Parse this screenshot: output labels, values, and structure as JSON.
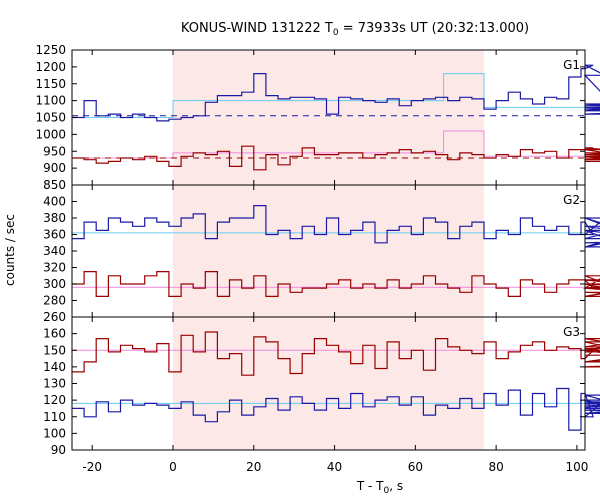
{
  "chart_data": {
    "type": "line",
    "title_main": "KONUS-WIND 131222 T",
    "title_sub": "0",
    "title_rest": " = 73933s UT (20:32:13.000)",
    "xlabel_main": "T - T",
    "xlabel_sub": "0",
    "xlabel_rest": ", s",
    "ylabel": "counts / sec",
    "xlim": [
      -25,
      102
    ],
    "x_ticks": [
      -20,
      0,
      20,
      40,
      60,
      80,
      100
    ],
    "x_tick_labels": [
      "-20",
      "0",
      "20",
      "40",
      "60",
      "80",
      "100"
    ],
    "highlight_interval": [
      0,
      77
    ],
    "highlight_color": "#fde8e8",
    "colors": {
      "blue": "#1a1aa6",
      "red": "#990000",
      "cyan": "#66ccee",
      "pink": "#ee88dd"
    },
    "panels": [
      {
        "label": "G1",
        "ylim": [
          850,
          1250
        ],
        "y_ticks": [
          850,
          900,
          950,
          1000,
          1050,
          1100,
          1150,
          1200,
          1250
        ],
        "y_tick_labels": [
          "850",
          "900",
          "950",
          "1000",
          "1050",
          "1100",
          "1150",
          "1200",
          "1250"
        ],
        "series": [
          {
            "color": "blue",
            "x0": -25,
            "step": 3,
            "values": [
              1050,
              1100,
              1055,
              1060,
              1050,
              1060,
              1050,
              1040,
              1045,
              1050,
              1055,
              1095,
              1115,
              1115,
              1125,
              1180,
              1115,
              1105,
              1110,
              1110,
              1105,
              1060,
              1110,
              1105,
              1100,
              1095,
              1105,
              1085,
              1100,
              1105,
              1110,
              1100,
              1110,
              1105,
              1075,
              1100,
              1125,
              1105,
              1090,
              1110,
              1105,
              1170,
              1195,
              1205,
              1175,
              1075,
              1080,
              1070,
              1090,
              1070,
              1085,
              1080,
              1060,
              1075
            ]
          },
          {
            "color": "red",
            "x0": -25,
            "step": 3,
            "values": [
              930,
              925,
              915,
              920,
              930,
              925,
              935,
              920,
              905,
              935,
              945,
              940,
              950,
              905,
              965,
              895,
              940,
              910,
              935,
              960,
              940,
              940,
              945,
              945,
              930,
              940,
              945,
              955,
              945,
              950,
              940,
              925,
              945,
              940,
              930,
              940,
              935,
              955,
              945,
              950,
              930,
              955,
              955,
              960,
              955,
              940,
              935,
              925,
              935,
              940,
              945,
              930,
              935,
              920
            ]
          }
        ],
        "fits": [
          {
            "color": "cyan",
            "style": "solid",
            "points": [
              [
                -25,
                1050
              ],
              [
                0,
                1050
              ],
              [
                0,
                1100
              ],
              [
                67,
                1100
              ],
              [
                67,
                1180
              ],
              [
                77,
                1180
              ],
              [
                77,
                1080
              ],
              [
                102,
                1080
              ]
            ]
          },
          {
            "color": "blue",
            "style": "dashed",
            "points": [
              [
                -25,
                1055
              ],
              [
                102,
                1055
              ]
            ]
          },
          {
            "color": "pink",
            "style": "solid",
            "points": [
              [
                -25,
                930
              ],
              [
                0,
                930
              ],
              [
                0,
                945
              ],
              [
                67,
                945
              ],
              [
                67,
                1010
              ],
              [
                77,
                1010
              ],
              [
                77,
                935
              ],
              [
                102,
                935
              ]
            ]
          },
          {
            "color": "red",
            "style": "dashed",
            "points": [
              [
                -25,
                930
              ],
              [
                102,
                930
              ]
            ]
          }
        ]
      },
      {
        "label": "G2",
        "ylim": [
          260,
          420
        ],
        "y_ticks": [
          260,
          280,
          300,
          320,
          340,
          360,
          380,
          400
        ],
        "y_tick_labels": [
          "260",
          "280",
          "300",
          "320",
          "340",
          "360",
          "380",
          "400"
        ],
        "series": [
          {
            "color": "blue",
            "x0": -25,
            "step": 3,
            "values": [
              355,
              375,
              365,
              380,
              375,
              370,
              380,
              375,
              370,
              380,
              385,
              355,
              375,
              380,
              380,
              395,
              360,
              365,
              355,
              370,
              360,
              380,
              360,
              365,
              375,
              350,
              365,
              370,
              360,
              380,
              375,
              355,
              370,
              375,
              355,
              365,
              360,
              380,
              370,
              365,
              370,
              360,
              375,
              360,
              380,
              365,
              345,
              365,
              355,
              380,
              345,
              370,
              350,
              355
            ]
          },
          {
            "color": "red",
            "x0": -25,
            "step": 3,
            "values": [
              300,
              315,
              285,
              310,
              300,
              300,
              310,
              315,
              285,
              300,
              295,
              315,
              285,
              305,
              295,
              310,
              285,
              300,
              290,
              295,
              295,
              300,
              305,
              295,
              300,
              295,
              305,
              295,
              300,
              310,
              300,
              295,
              290,
              310,
              300,
              295,
              285,
              305,
              300,
              290,
              300,
              305,
              305,
              295,
              310,
              295,
              300,
              285,
              300,
              295,
              285,
              305,
              290,
              285
            ]
          }
        ],
        "fits": [
          {
            "color": "cyan",
            "style": "solid",
            "points": [
              [
                -25,
                362
              ],
              [
                102,
                362
              ]
            ]
          },
          {
            "color": "pink",
            "style": "solid",
            "points": [
              [
                -25,
                296
              ],
              [
                102,
                296
              ]
            ]
          }
        ]
      },
      {
        "label": "G3",
        "ylim": [
          90,
          170
        ],
        "y_ticks": [
          90,
          100,
          110,
          120,
          130,
          140,
          150,
          160
        ],
        "y_tick_labels": [
          "90",
          "100",
          "110",
          "120",
          "130",
          "140",
          "150",
          "160"
        ],
        "series": [
          {
            "color": "red",
            "x0": -25,
            "step": 3,
            "values": [
              137,
              143,
              157,
              149,
              153,
              151,
              149,
              154,
              137,
              159,
              149,
              161,
              145,
              148,
              135,
              158,
              155,
              145,
              136,
              148,
              157,
              153,
              149,
              142,
              153,
              139,
              155,
              145,
              150,
              138,
              157,
              152,
              150,
              148,
              155,
              145,
              149,
              153,
              155,
              150,
              152,
              151,
              145,
              150,
              152,
              155,
              149,
              157,
              150,
              143,
              151,
              140,
              143,
              147
            ]
          },
          {
            "color": "blue",
            "x0": -25,
            "step": 3,
            "values": [
              115,
              110,
              119,
              113,
              120,
              117,
              118,
              117,
              115,
              119,
              111,
              107,
              113,
              120,
              111,
              116,
              121,
              114,
              122,
              118,
              114,
              121,
              115,
              124,
              116,
              120,
              122,
              117,
              122,
              111,
              117,
              115,
              121,
              115,
              124,
              117,
              126,
              111,
              124,
              116,
              127,
              102,
              124,
              110,
              120,
              115,
              123,
              114,
              112,
              116,
              119,
              117,
              118,
              120
            ]
          }
        ],
        "fits": [
          {
            "color": "pink",
            "style": "solid",
            "points": [
              [
                -25,
                150
              ],
              [
                102,
                150
              ]
            ]
          },
          {
            "color": "cyan",
            "style": "solid",
            "points": [
              [
                -25,
                118
              ],
              [
                102,
                118
              ]
            ]
          }
        ]
      }
    ]
  }
}
